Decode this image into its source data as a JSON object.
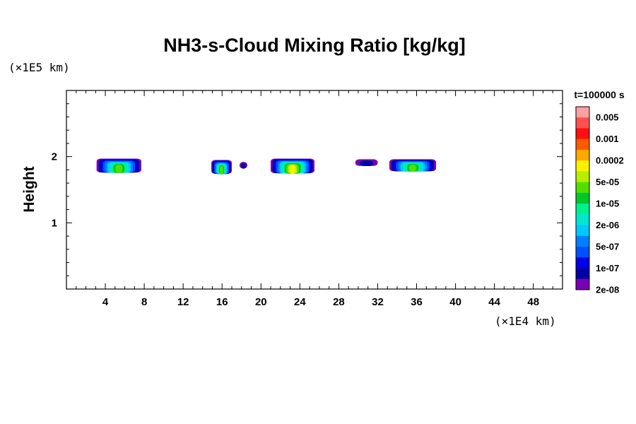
{
  "chart_data": {
    "type": "heatmap",
    "title": "NH3-s-Cloud Mixing Ratio [kg/kg]",
    "xlabel": "",
    "ylabel": "Height",
    "x_unit": "(×1E4 km)",
    "y_unit": "(×1E5 km)",
    "time_label": "t=100000 s",
    "xlim": [
      0,
      51
    ],
    "ylim": [
      0,
      3
    ],
    "x_ticks": [
      4,
      8,
      12,
      16,
      20,
      24,
      28,
      32,
      36,
      40,
      44,
      48
    ],
    "y_ticks": [
      1,
      2
    ],
    "x_minor_step": 1,
    "y_minor_step": 0.2,
    "grid": false,
    "colorbar": {
      "placement": "right",
      "labels": [
        "0.005",
        "0.001",
        "0.0002",
        "5e-05",
        "1e-05",
        "2e-06",
        "5e-07",
        "1e-07",
        "2e-08"
      ],
      "colors": [
        "#ffa0a0",
        "#ff5050",
        "#ff1010",
        "#ff5a00",
        "#ffa800",
        "#fff000",
        "#b4f000",
        "#50e000",
        "#00c828",
        "#00f090",
        "#00e6d2",
        "#00c8ff",
        "#0080ff",
        "#0050ff",
        "#0000e6",
        "#0000a0",
        "#7800b4"
      ]
    },
    "clouds": [
      {
        "x": [
          3.1,
          7.7
        ],
        "y": [
          1.76,
          1.97
        ],
        "peak": "5e-05"
      },
      {
        "x": [
          14.9,
          17.0
        ],
        "y": [
          1.74,
          1.95
        ],
        "peak": "5e-05"
      },
      {
        "x": [
          17.8,
          18.6
        ],
        "y": [
          1.82,
          1.92
        ],
        "peak": "1e-07"
      },
      {
        "x": [
          21.0,
          25.5
        ],
        "y": [
          1.75,
          1.97
        ],
        "peak": "0.0002"
      },
      {
        "x": [
          29.7,
          32.0
        ],
        "y": [
          1.86,
          1.96
        ],
        "peak": "1e-07"
      },
      {
        "x": [
          33.2,
          38.0
        ],
        "y": [
          1.78,
          1.96
        ],
        "peak": "5e-05"
      }
    ]
  }
}
